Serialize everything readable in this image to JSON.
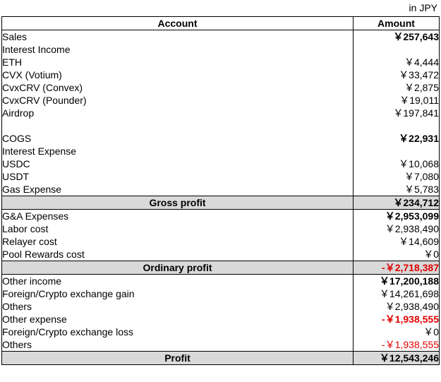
{
  "currency_note": "in JPY",
  "headers": {
    "account": "Account",
    "amount": "Amount"
  },
  "rows": {
    "sales": {
      "label": "Sales",
      "amount": "￥257,643"
    },
    "interest_income": {
      "label": "Interest Income",
      "amount": ""
    },
    "eth": {
      "label": "ETH",
      "amount": "￥4,444"
    },
    "cvx_votium": {
      "label": "CVX (Votium)",
      "amount": "￥33,472"
    },
    "cvxcrv_convex": {
      "label": "CvxCRV (Convex)",
      "amount": "￥2,875"
    },
    "cvxcrv_pounder": {
      "label": "CvxCRV (Pounder)",
      "amount": "￥19,011"
    },
    "airdrop": {
      "label": "Airdrop",
      "amount": "￥197,841"
    },
    "cogs": {
      "label": "COGS",
      "amount": "￥22,931"
    },
    "interest_expense": {
      "label": "Interest Expense",
      "amount": ""
    },
    "usdc": {
      "label": "USDC",
      "amount": "￥10,068"
    },
    "usdt": {
      "label": "USDT",
      "amount": "￥7,080"
    },
    "gas_expense": {
      "label": "Gas Expense",
      "amount": "￥5,783"
    },
    "gross_profit": {
      "label": "Gross profit",
      "amount": "￥234,712"
    },
    "ga_expenses": {
      "label": "G&A Expenses",
      "amount": "￥2,953,099"
    },
    "labor_cost": {
      "label": "Labor cost",
      "amount": "￥2,938,490"
    },
    "relayer_cost": {
      "label": "Relayer cost",
      "amount": "￥14,609"
    },
    "pool_rewards_cost": {
      "label": "Pool Rewards cost",
      "amount": "￥0"
    },
    "ordinary_profit": {
      "label": "Ordinary profit",
      "amount": "-￥2,718,387"
    },
    "other_income": {
      "label": "Other income",
      "amount": "￥17,200,188"
    },
    "fx_gain": {
      "label": "Foreign/Crypto exchange gain",
      "amount": "￥14,261,698"
    },
    "others_income": {
      "label": "Others",
      "amount": "￥2,938,490"
    },
    "other_expense": {
      "label": "Other expense",
      "amount": "-￥1,938,555"
    },
    "fx_loss": {
      "label": "Foreign/Crypto exchange loss",
      "amount": "￥0"
    },
    "others_expense": {
      "label": "Others",
      "amount": "-￥1,938,555"
    },
    "profit": {
      "label": "Profit",
      "amount": "￥12,543,246"
    }
  },
  "colors": {
    "negative": "#e00000",
    "total_row_bg": "#d9d9d9"
  }
}
